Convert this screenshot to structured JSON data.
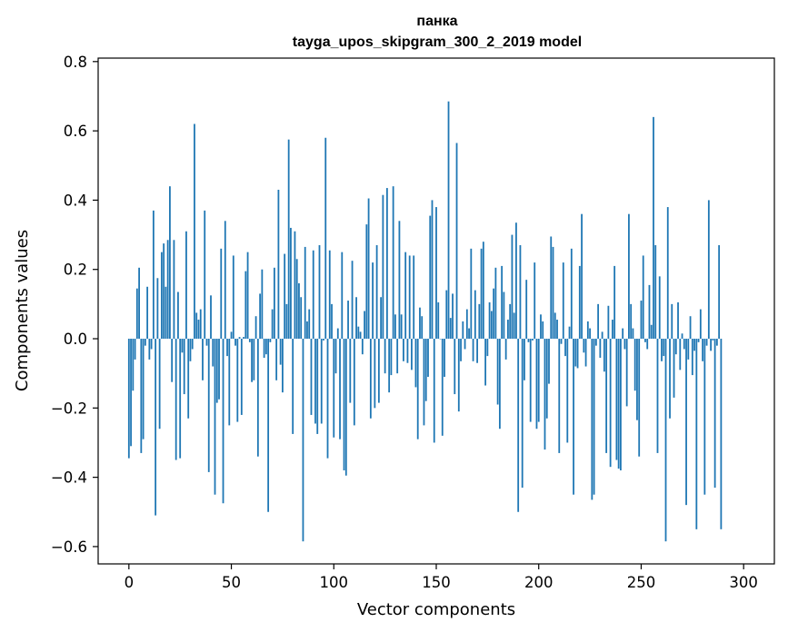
{
  "chart_data": {
    "type": "bar",
    "title": "панка",
    "subtitle": "tayga_upos_skipgram_300_2_2019 model",
    "xlabel": "Vector components",
    "ylabel": "Components values",
    "xlim": [
      -15,
      315
    ],
    "ylim": [
      -0.65,
      0.81
    ],
    "xticks": [
      0,
      50,
      100,
      150,
      200,
      250,
      300
    ],
    "xtick_labels": [
      "0",
      "50",
      "100",
      "150",
      "200",
      "250",
      "300"
    ],
    "yticks": [
      -0.6,
      -0.4,
      -0.2,
      0.0,
      0.2,
      0.4,
      0.6,
      0.8
    ],
    "ytick_labels": [
      "−0.6",
      "−0.4",
      "−0.2",
      "0.0",
      "0.2",
      "0.4",
      "0.6",
      "0.8"
    ],
    "grid": false,
    "color": "#1f77b4",
    "x_start": 0,
    "values": [
      -0.345,
      -0.31,
      -0.15,
      -0.06,
      0.145,
      0.205,
      -0.33,
      -0.29,
      -0.02,
      0.15,
      -0.06,
      -0.03,
      0.37,
      -0.51,
      0.175,
      -0.26,
      0.25,
      0.275,
      0.15,
      0.285,
      0.44,
      -0.125,
      0.285,
      -0.35,
      0.135,
      -0.345,
      -0.04,
      -0.16,
      0.31,
      -0.23,
      -0.065,
      -0.03,
      0.62,
      0.075,
      0.055,
      0.085,
      -0.12,
      0.37,
      -0.02,
      -0.385,
      0.125,
      -0.08,
      -0.45,
      -0.185,
      -0.175,
      0.26,
      -0.475,
      0.34,
      -0.05,
      -0.25,
      0.02,
      0.24,
      -0.02,
      -0.24,
      0.005,
      -0.22,
      0.005,
      0.195,
      0.25,
      -0.01,
      -0.125,
      -0.12,
      0.065,
      -0.34,
      0.13,
      0.2,
      -0.055,
      -0.045,
      -0.5,
      -0.01,
      0.085,
      0.205,
      -0.12,
      0.43,
      -0.075,
      -0.155,
      0.245,
      0.1,
      0.575,
      0.32,
      -0.275,
      0.31,
      0.23,
      0.16,
      0.12,
      -0.585,
      0.265,
      0.05,
      0.085,
      -0.22,
      0.255,
      -0.245,
      -0.275,
      0.27,
      -0.245,
      -0.005,
      0.58,
      -0.345,
      0.255,
      0.1,
      -0.285,
      -0.1,
      0.03,
      -0.29,
      0.25,
      -0.38,
      -0.395,
      0.11,
      -0.185,
      0.225,
      -0.25,
      0.12,
      0.035,
      0.02,
      -0.045,
      0.08,
      0.33,
      0.405,
      -0.23,
      0.22,
      -0.2,
      0.27,
      -0.185,
      0.12,
      0.415,
      -0.1,
      0.435,
      -0.155,
      -0.105,
      0.44,
      0.07,
      -0.1,
      0.34,
      0.07,
      -0.065,
      0.25,
      -0.07,
      0.24,
      -0.09,
      0.24,
      -0.14,
      -0.29,
      0.09,
      0.065,
      -0.25,
      -0.18,
      -0.11,
      0.355,
      0.4,
      -0.3,
      0.38,
      0.105,
      0.0,
      -0.28,
      -0.11,
      0.14,
      0.685,
      0.06,
      0.13,
      -0.16,
      0.565,
      -0.21,
      -0.065,
      0.05,
      -0.03,
      0.085,
      0.03,
      0.26,
      -0.065,
      0.14,
      -0.07,
      0.1,
      0.26,
      0.28,
      -0.135,
      -0.05,
      0.105,
      0.08,
      0.145,
      0.205,
      -0.19,
      -0.26,
      0.21,
      0.135,
      -0.06,
      0.055,
      0.1,
      0.3,
      0.075,
      0.335,
      -0.5,
      0.27,
      -0.43,
      -0.12,
      0.17,
      -0.01,
      -0.24,
      -0.005,
      0.22,
      -0.26,
      -0.24,
      0.07,
      0.05,
      -0.32,
      -0.23,
      -0.13,
      0.295,
      0.265,
      0.075,
      0.055,
      -0.33,
      -0.015,
      0.22,
      -0.05,
      -0.3,
      0.035,
      0.26,
      -0.45,
      -0.08,
      -0.085,
      0.21,
      0.36,
      -0.04,
      -0.08,
      0.05,
      0.03,
      -0.465,
      -0.45,
      -0.02,
      0.1,
      -0.055,
      0.02,
      -0.095,
      -0.33,
      0.095,
      -0.37,
      0.055,
      0.21,
      -0.35,
      -0.375,
      -0.38,
      0.03,
      -0.03,
      -0.195,
      0.36,
      0.1,
      0.03,
      -0.15,
      -0.235,
      -0.34,
      0.11,
      0.24,
      -0.01,
      -0.03,
      0.155,
      0.04,
      0.64,
      0.27,
      -0.33,
      0.18,
      -0.065,
      -0.05,
      -0.585,
      0.38,
      -0.23,
      0.1,
      -0.17,
      -0.045,
      0.105,
      -0.09,
      0.015,
      -0.03,
      -0.48,
      -0.06,
      0.065,
      -0.105,
      -0.035,
      -0.55,
      -0.01,
      0.085,
      -0.065,
      -0.45,
      -0.02,
      0.4,
      -0.035,
      -0.005,
      -0.43,
      -0.02,
      0.27,
      -0.55
    ]
  }
}
